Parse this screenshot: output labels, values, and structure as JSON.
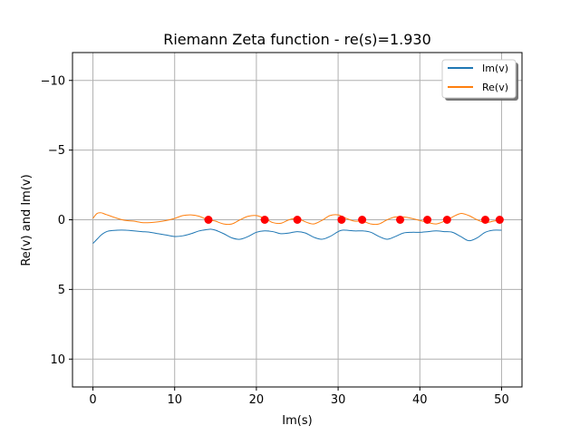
{
  "chart_data": {
    "type": "line",
    "title": "Riemann Zeta function - re(s)=1.930",
    "xlabel": "Im(s)",
    "ylabel": "Re(v) and Im(v)",
    "xlim": [
      -2.5,
      52.5
    ],
    "ylim": [
      12,
      -12
    ],
    "y_inverted": true,
    "grid": true,
    "legend_position": "upper right",
    "xticks": [
      {
        "value": 0,
        "label": "0"
      },
      {
        "value": 10,
        "label": "10"
      },
      {
        "value": 20,
        "label": "20"
      },
      {
        "value": 30,
        "label": "30"
      },
      {
        "value": 40,
        "label": "40"
      },
      {
        "value": 50,
        "label": "50"
      }
    ],
    "yticks": [
      {
        "value": -10,
        "label": "−10"
      },
      {
        "value": -5,
        "label": "−5"
      },
      {
        "value": 0,
        "label": "0"
      },
      {
        "value": 5,
        "label": "5"
      },
      {
        "value": 10,
        "label": "10"
      }
    ],
    "series": [
      {
        "name": "Im(v)",
        "color": "#1f77b4",
        "x": [
          0,
          0.5,
          1,
          1.5,
          2,
          3,
          4,
          5,
          6,
          7,
          8,
          9,
          10,
          11,
          12,
          13,
          14,
          14.5,
          15,
          16,
          17,
          18,
          19,
          20,
          21,
          22,
          23,
          24,
          25,
          26,
          27,
          28,
          29,
          30,
          30.5,
          31,
          32,
          33,
          34,
          35,
          36,
          37,
          38,
          39,
          40,
          41,
          42,
          43,
          44,
          45,
          46,
          47,
          48,
          49,
          50
        ],
        "y": [
          1.7,
          1.4,
          1.1,
          0.9,
          0.8,
          0.75,
          0.75,
          0.8,
          0.85,
          0.9,
          1.0,
          1.1,
          1.2,
          1.15,
          1.0,
          0.8,
          0.7,
          0.68,
          0.75,
          1.0,
          1.3,
          1.4,
          1.2,
          0.9,
          0.8,
          0.85,
          1.0,
          0.95,
          0.85,
          0.95,
          1.25,
          1.4,
          1.2,
          0.85,
          0.75,
          0.75,
          0.8,
          0.8,
          0.9,
          1.2,
          1.4,
          1.2,
          0.95,
          0.9,
          0.9,
          0.85,
          0.8,
          0.85,
          0.9,
          1.2,
          1.5,
          1.3,
          0.9,
          0.75,
          0.75
        ]
      },
      {
        "name": "Re(v)",
        "color": "#ff7f0e",
        "x": [
          0,
          0.5,
          1,
          1.5,
          2,
          3,
          4,
          5,
          6,
          7,
          8,
          9,
          10,
          11,
          12,
          13,
          14,
          14.5,
          15,
          16,
          17,
          18,
          19,
          20,
          21,
          22,
          23,
          24,
          25,
          26,
          27,
          28,
          29,
          30,
          31,
          32,
          33,
          34,
          35,
          36,
          37,
          38,
          39,
          40,
          41,
          42,
          43,
          44,
          45,
          46,
          47,
          48,
          49,
          50
        ],
        "y": [
          -0.1,
          -0.45,
          -0.5,
          -0.4,
          -0.3,
          -0.1,
          0.05,
          0.1,
          0.2,
          0.2,
          0.15,
          0.05,
          -0.1,
          -0.3,
          -0.35,
          -0.25,
          0.0,
          0.05,
          0.1,
          0.3,
          0.3,
          0.0,
          -0.25,
          -0.3,
          -0.1,
          0.2,
          0.25,
          0.0,
          -0.1,
          0.15,
          0.3,
          0.05,
          -0.3,
          -0.35,
          -0.1,
          0.1,
          0.1,
          0.3,
          0.3,
          0.0,
          -0.2,
          -0.2,
          -0.1,
          0.05,
          0.2,
          0.3,
          0.1,
          -0.2,
          -0.45,
          -0.3,
          0.0,
          0.2,
          0.1,
          0.0
        ]
      }
    ],
    "zeros": {
      "color": "#ff0000",
      "x": [
        14.13,
        21.02,
        25.01,
        30.42,
        32.94,
        37.59,
        40.92,
        43.33,
        48.01,
        49.77
      ],
      "y": [
        0,
        0,
        0,
        0,
        0,
        0,
        0,
        0,
        0,
        0
      ]
    }
  }
}
